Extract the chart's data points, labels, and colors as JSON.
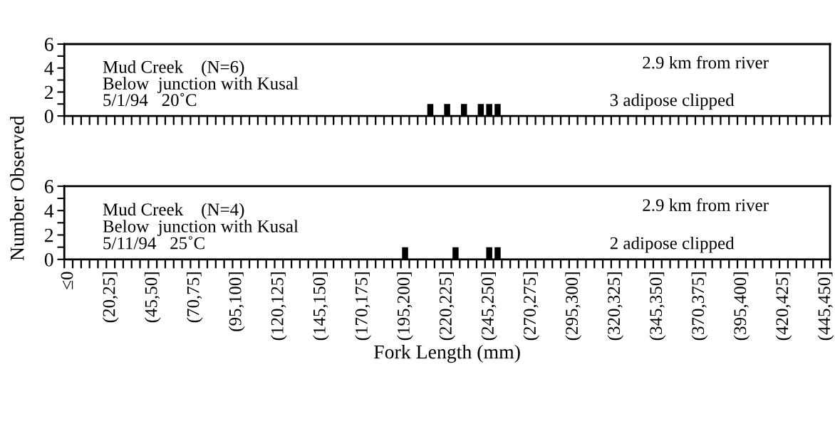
{
  "chart_data": [
    {
      "type": "bar",
      "ylim": [
        0,
        6
      ],
      "yticks": [
        0,
        {
          "value": 1,
          "label": null
        },
        2,
        {
          "value": 3,
          "label": null
        },
        4,
        {
          "value": 5,
          "label": null
        },
        6
      ],
      "color": "#000000",
      "categories": [
        null,
        null,
        null,
        null,
        null,
        null,
        null,
        null,
        null,
        null,
        null,
        null,
        null,
        null,
        null,
        null,
        null,
        null,
        null,
        null,
        null,
        null,
        null,
        null,
        null,
        null,
        null,
        null,
        null,
        null,
        null,
        null,
        null,
        null,
        null,
        null,
        null,
        null,
        null,
        null,
        null,
        null,
        null,
        null,
        null,
        null,
        null,
        null,
        null,
        null,
        null,
        null,
        null,
        null,
        null,
        null,
        null,
        null,
        null,
        null,
        null,
        null,
        null,
        null,
        null,
        null,
        null,
        null,
        null,
        null,
        null,
        null,
        null,
        null,
        null,
        null,
        null,
        null,
        null,
        null,
        null,
        null,
        null,
        null,
        null,
        null,
        null,
        null,
        null,
        null,
        null
      ],
      "values": [
        0,
        0,
        0,
        0,
        0,
        0,
        0,
        0,
        0,
        0,
        0,
        0,
        0,
        0,
        0,
        0,
        0,
        0,
        0,
        0,
        0,
        0,
        0,
        0,
        0,
        0,
        0,
        0,
        0,
        0,
        0,
        0,
        0,
        0,
        0,
        0,
        0,
        0,
        0,
        0,
        0,
        0,
        0,
        1,
        0,
        1,
        0,
        1,
        0,
        1,
        1,
        1,
        0,
        0,
        0,
        0,
        0,
        0,
        0,
        0,
        0,
        0,
        0,
        0,
        0,
        0,
        0,
        0,
        0,
        0,
        0,
        0,
        0,
        0,
        0,
        0,
        0,
        0,
        0,
        0,
        0,
        0,
        0,
        0,
        0,
        0,
        0,
        0,
        0,
        0,
        0
      ],
      "annotations": [
        "Mud Creek    (N=6)",
        "Below  junction with Kusal",
        "5/1/94   20˚C",
        "2.9 km from river",
        "3 adipose clipped"
      ]
    },
    {
      "type": "bar",
      "ylim": [
        0,
        6
      ],
      "yticks": [
        0,
        {
          "value": 1,
          "label": null
        },
        2,
        {
          "value": 3,
          "label": null
        },
        4,
        {
          "value": 5,
          "label": null
        },
        6
      ],
      "color": "#000000",
      "xlabel": "Fork Length (mm)",
      "ylabel": "Number Observed",
      "categories": [
        "≤0",
        null,
        null,
        null,
        null,
        "(20,25]",
        null,
        null,
        null,
        null,
        "(45,50]",
        null,
        null,
        null,
        null,
        "(70,75]",
        null,
        null,
        null,
        null,
        "(95,100]",
        null,
        null,
        null,
        null,
        "(120,125]",
        null,
        null,
        null,
        null,
        "(145,150]",
        null,
        null,
        null,
        null,
        "(170,175]",
        null,
        null,
        null,
        null,
        "(195,200]",
        null,
        null,
        null,
        null,
        "(220,225]",
        null,
        null,
        null,
        null,
        "(245,250]",
        null,
        null,
        null,
        null,
        "(270,275]",
        null,
        null,
        null,
        null,
        "(295,300]",
        null,
        null,
        null,
        null,
        "(320,325]",
        null,
        null,
        null,
        null,
        "(345,350]",
        null,
        null,
        null,
        null,
        "(370,375]",
        null,
        null,
        null,
        null,
        "(395,400]",
        null,
        null,
        null,
        null,
        "(420,425]",
        null,
        null,
        null,
        null,
        "(445,450]"
      ],
      "values": [
        0,
        0,
        0,
        0,
        0,
        0,
        0,
        0,
        0,
        0,
        0,
        0,
        0,
        0,
        0,
        0,
        0,
        0,
        0,
        0,
        0,
        0,
        0,
        0,
        0,
        0,
        0,
        0,
        0,
        0,
        0,
        0,
        0,
        0,
        0,
        0,
        0,
        0,
        0,
        0,
        1,
        0,
        0,
        0,
        0,
        0,
        1,
        0,
        0,
        0,
        1,
        1,
        0,
        0,
        0,
        0,
        0,
        0,
        0,
        0,
        0,
        0,
        0,
        0,
        0,
        0,
        0,
        0,
        0,
        0,
        0,
        0,
        0,
        0,
        0,
        0,
        0,
        0,
        0,
        0,
        0,
        0,
        0,
        0,
        0,
        0,
        0,
        0,
        0,
        0,
        0
      ],
      "annotations": [
        "Mud Creek    (N=4)",
        "Below  junction with Kusal",
        "5/11/94   25˚C",
        "2.9 km from river",
        "2 adipose clipped"
      ]
    }
  ]
}
